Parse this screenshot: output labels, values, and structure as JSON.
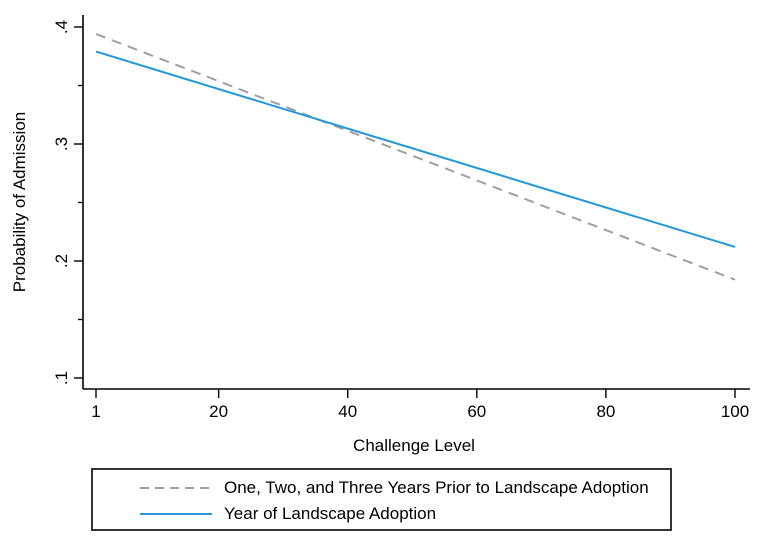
{
  "figure": {
    "background": "#ffffff"
  },
  "chart_data": {
    "type": "line",
    "title": "",
    "xlabel": "Challenge Level",
    "ylabel": "Probability of Admission",
    "xlim": [
      1,
      100
    ],
    "ylim": [
      0.1,
      0.4
    ],
    "grid": false,
    "axis_color": "#000000",
    "text_color": "#000000",
    "x_ticks": {
      "values": [
        1,
        20,
        40,
        60,
        80,
        100
      ],
      "labels": [
        "1",
        "20",
        "40",
        "60",
        "80",
        "100"
      ]
    },
    "y_ticks": {
      "values": [
        0.1,
        0.2,
        0.3,
        0.4
      ],
      "labels": [
        ".1",
        ".2",
        ".3",
        ".4"
      ],
      "minor_values": [
        0.15,
        0.25,
        0.35
      ]
    },
    "series": [
      {
        "name": "One, Two, and Three Years Prior to Landscape Adoption",
        "line_style": "dashed",
        "color": "#a0a0a0",
        "x": [
          1,
          100
        ],
        "y": [
          0.394,
          0.184
        ]
      },
      {
        "name": "Year of Landscape Adoption",
        "line_style": "solid",
        "color": "#2397d7",
        "x": [
          1,
          100
        ],
        "y": [
          0.379,
          0.212
        ]
      }
    ],
    "legend": {
      "position": "bottom",
      "entries": [
        "One, Two, and Three Years Prior to Landscape Adoption",
        "Year of Landscape Adoption"
      ]
    }
  }
}
